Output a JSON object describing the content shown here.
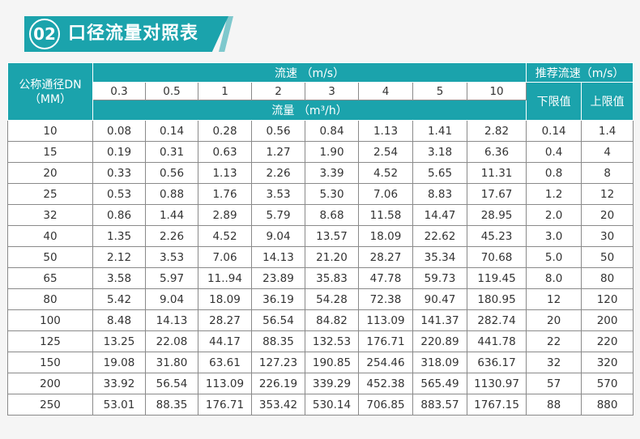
{
  "banner": {
    "number": "02",
    "title": "口径流量对照表"
  },
  "table": {
    "dn_header_line1": "公称通径DN",
    "dn_header_line2": "（MM）",
    "speed_header": "流速 （m/s）",
    "flow_header": "流量 （m³/h）",
    "recommend_header": "推荐流速（m/s）",
    "lower_label": "下限值",
    "upper_label": "上限值",
    "speeds": [
      "0.3",
      "0.5",
      "1",
      "2",
      "3",
      "4",
      "5",
      "10"
    ],
    "rows": [
      [
        "10",
        "0.08",
        "0.14",
        "0.28",
        "0.56",
        "0.84",
        "1.13",
        "1.41",
        "2.82",
        "0.14",
        "1.4"
      ],
      [
        "15",
        "0.19",
        "0.31",
        "0.63",
        "1.27",
        "1.90",
        "2.54",
        "3.18",
        "6.36",
        "0.4",
        "4"
      ],
      [
        "20",
        "0.33",
        "0.56",
        "1.13",
        "2.26",
        "3.39",
        "4.52",
        "5.65",
        "11.31",
        "0.8",
        "8"
      ],
      [
        "25",
        "0.53",
        "0.88",
        "1.76",
        "3.53",
        "5.30",
        "7.06",
        "8.83",
        "17.67",
        "1.2",
        "12"
      ],
      [
        "32",
        "0.86",
        "1.44",
        "2.89",
        "5.79",
        "8.68",
        "11.58",
        "14.47",
        "28.95",
        "2.0",
        "20"
      ],
      [
        "40",
        "1.35",
        "2.26",
        "4.52",
        "9.04",
        "13.57",
        "18.09",
        "22.62",
        "45.23",
        "3.0",
        "30"
      ],
      [
        "50",
        "2.12",
        "3.53",
        "7.06",
        "14.13",
        "21.20",
        "28.27",
        "35.34",
        "70.68",
        "5.0",
        "50"
      ],
      [
        "65",
        "3.58",
        "5.97",
        "11..94",
        "23.89",
        "35.83",
        "47.78",
        "59.73",
        "119.45",
        "8.0",
        "80"
      ],
      [
        "80",
        "5.42",
        "9.04",
        "18.09",
        "36.19",
        "54.28",
        "72.38",
        "90.47",
        "180.95",
        "12",
        "120"
      ],
      [
        "100",
        "8.48",
        "14.13",
        "28.27",
        "56.54",
        "84.82",
        "113.09",
        "141.37",
        "282.74",
        "20",
        "200"
      ],
      [
        "125",
        "13.25",
        "22.08",
        "44.17",
        "88.35",
        "132.53",
        "176.71",
        "220.89",
        "441.78",
        "22",
        "220"
      ],
      [
        "150",
        "19.08",
        "31.80",
        "63.61",
        "127.23",
        "190.85",
        "254.46",
        "318.09",
        "636.17",
        "32",
        "320"
      ],
      [
        "200",
        "33.92",
        "56.54",
        "113.09",
        "226.19",
        "339.29",
        "452.38",
        "565.49",
        "1130.97",
        "57",
        "570"
      ],
      [
        "250",
        "53.01",
        "88.35",
        "176.71",
        "353.42",
        "530.14",
        "706.85",
        "883.57",
        "1767.15",
        "88",
        "880"
      ]
    ]
  }
}
